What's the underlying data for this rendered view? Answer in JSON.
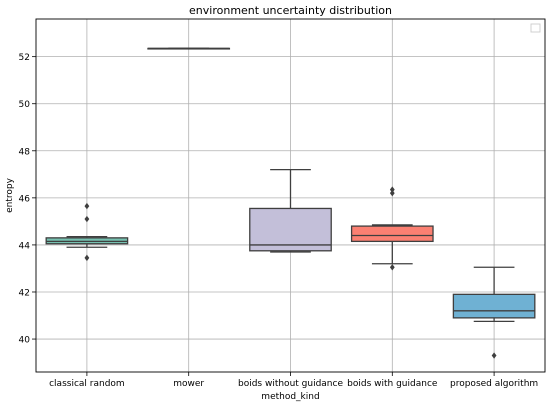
{
  "chart_data": {
    "type": "box",
    "title": "environment uncertainty distribution",
    "xlabel": "method_kind",
    "ylabel": "entropy",
    "ylim": [
      38.6,
      53.6
    ],
    "yticks": [
      40,
      42,
      44,
      46,
      48,
      50,
      52
    ],
    "grid": true,
    "legend": "top-right (empty)",
    "categories": [
      "classical random",
      "mower",
      "boids without guidance",
      "boids with guidance",
      "proposed algorithm"
    ],
    "boxes": [
      {
        "category": "classical random",
        "color": "#76c1b0",
        "whislo": 43.9,
        "q1": 44.05,
        "med": 44.15,
        "q3": 44.3,
        "whishi": 44.35,
        "fliers": [
          45.65,
          45.1,
          43.45
        ]
      },
      {
        "category": "mower",
        "color": "#e8e39a",
        "whislo": 52.35,
        "q1": 52.35,
        "med": 52.35,
        "q3": 52.35,
        "whishi": 52.35,
        "fliers": []
      },
      {
        "category": "boids without guidance",
        "color": "#c3bfd9",
        "whislo": 43.7,
        "q1": 43.75,
        "med": 44.0,
        "q3": 45.55,
        "whishi": 47.2,
        "fliers": []
      },
      {
        "category": "boids with guidance",
        "color": "#fb8072",
        "whislo": 43.2,
        "q1": 44.15,
        "med": 44.4,
        "q3": 44.8,
        "whishi": 44.85,
        "fliers": [
          46.35,
          46.2,
          43.05
        ]
      },
      {
        "category": "proposed algorithm",
        "color": "#6fb1d3",
        "whislo": 40.75,
        "q1": 40.9,
        "med": 41.2,
        "q3": 41.9,
        "whishi": 43.05,
        "fliers": [
          39.3
        ]
      }
    ]
  }
}
